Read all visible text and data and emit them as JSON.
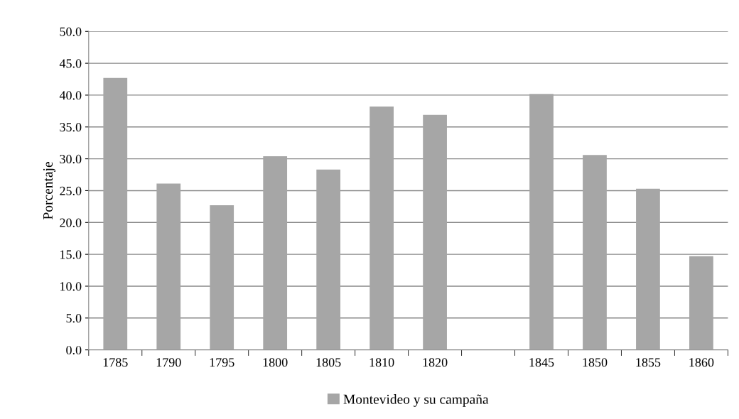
{
  "chart_data": {
    "type": "bar",
    "ylabel": "Porcentaje",
    "categories": [
      "1785",
      "1790",
      "1795",
      "1800",
      "1805",
      "1810",
      "1820",
      null,
      "1845",
      "1850",
      "1855",
      "1860"
    ],
    "series": [
      {
        "name": "Montevideo y su campaña",
        "color": "#a6a6a6",
        "values": [
          42.7,
          26.1,
          22.7,
          30.4,
          28.3,
          38.2,
          36.9,
          null,
          40.2,
          30.6,
          25.3,
          14.7
        ]
      }
    ],
    "ylim": [
      0,
      50
    ],
    "yticks": [
      {
        "value": 0,
        "label": "0.0"
      },
      {
        "value": 5,
        "label": "5.0"
      },
      {
        "value": 10,
        "label": "10.0"
      },
      {
        "value": 15,
        "label": "15.0"
      },
      {
        "value": 20,
        "label": "20.0"
      },
      {
        "value": 25,
        "label": "25.0"
      },
      {
        "value": 30,
        "label": "30.0"
      },
      {
        "value": 35,
        "label": "35.0"
      },
      {
        "value": 40,
        "label": "40.0"
      },
      {
        "value": 45,
        "label": "45.0"
      },
      {
        "value": 50,
        "label": "50.0"
      }
    ],
    "grid": "y",
    "legend": "bottom"
  }
}
